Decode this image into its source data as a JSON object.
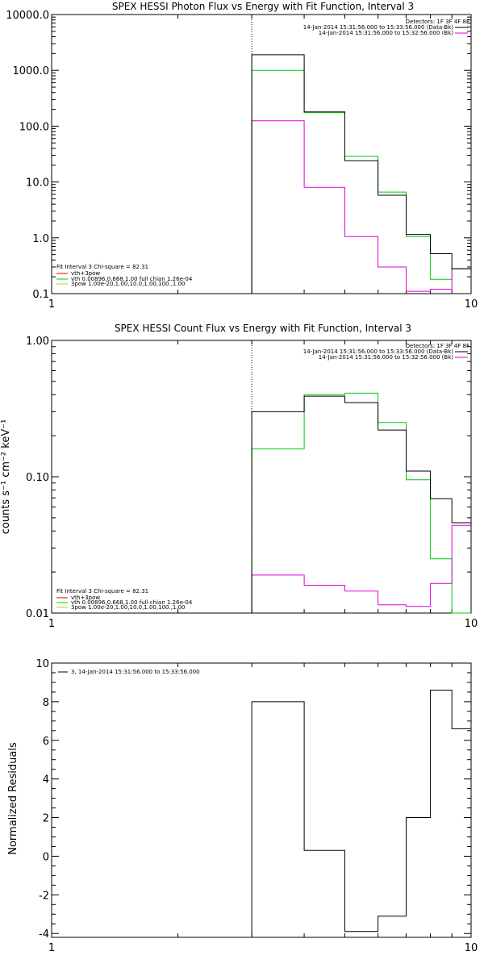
{
  "colors": {
    "data": "#000000",
    "bk": "#dd00dd",
    "fit": "#00cc00",
    "comp_vth": "#00cc00",
    "comp_3pow": "#cccc00",
    "comp_sum": "#dd0000"
  },
  "chart_data": [
    {
      "type": "line",
      "title": "SPEX HESSI Photon Flux vs Energy with Fit Function, Interval 3",
      "xlabel": "",
      "ylabel": "",
      "xscale": "log",
      "yscale": "log",
      "xlim": [
        1,
        10
      ],
      "ylim": [
        0.1,
        10000
      ],
      "xtick_labels": [
        "1",
        "10"
      ],
      "ytick_labels": [
        "0.1",
        "1.0",
        "10.0",
        "100.0",
        "1000.0",
        "10000.0"
      ],
      "vline_x": 3.0,
      "bin_edges": [
        3.0,
        4.0,
        5.0,
        6.0,
        7.0,
        8.0,
        9.0,
        10.0
      ],
      "series": [
        {
          "values": [
            1900,
            180,
            24,
            5.8,
            1.15,
            0.52,
            0.28
          ]
        },
        {
          "values": [
            125,
            8.0,
            1.05,
            0.3,
            0.11,
            0.12,
            0.28
          ]
        },
        {
          "values": [
            1000,
            175,
            29,
            6.6,
            1.05,
            0.18,
            0.28
          ]
        }
      ],
      "detectors": "Detectors: 1F 3F 4F 8F",
      "legend": [
        "14-Jan-2014 15:31:56.000 to 15:33:56.000 (Data-Bk)",
        "14-Jan-2014 15:31:56.000 to 15:32:56.000 (Bk)"
      ],
      "fit_info": [
        "Fit Interval 3   Chi-square = 82.31",
        "vth+3pow",
        "vth 0.00896,0.668,1.00   full chian 1.26e-04",
        "3pow 1.00e-20,1.00,10.0,1.00,100.,1.00"
      ]
    },
    {
      "type": "line",
      "title": "SPEX HESSI Count Flux vs Energy with Fit Function, Interval 3",
      "xlabel": "",
      "ylabel": "counts s⁻¹ cm⁻² keV⁻¹",
      "xscale": "log",
      "yscale": "log",
      "xlim": [
        1,
        10
      ],
      "ylim": [
        0.01,
        1.0
      ],
      "xtick_labels": [
        "1",
        "10"
      ],
      "ytick_labels": [
        "0.01",
        "0.10",
        "1.00"
      ],
      "vline_x": 3.0,
      "bin_edges": [
        3.0,
        4.0,
        5.0,
        6.0,
        7.0,
        8.0,
        9.0,
        10.0
      ],
      "series": [
        {
          "values": [
            0.3,
            0.39,
            0.35,
            0.22,
            0.11,
            0.069,
            0.046
          ]
        },
        {
          "values": [
            0.019,
            0.016,
            0.0145,
            0.0115,
            0.0112,
            0.0165,
            0.044
          ]
        },
        {
          "values": [
            0.16,
            0.4,
            0.41,
            0.25,
            0.095,
            0.025,
            0.0
          ]
        }
      ],
      "detectors": "Detectors: 1F 3F 4F 8F",
      "legend": [
        "14-Jan-2014 15:31:56.000 to 15:33:56.000 (Data-Bk)",
        "14-Jan-2014 15:31:56.000 to 15:32:56.000 (Bk)"
      ],
      "fit_info": [
        "Fit Interval 3   Chi-square = 82.31",
        "vth+3pow",
        "vth 0.00896,0.668,1.00   full chian 1.26e-04",
        "3pow 1.00e-20,1.00,10.0,1.00,100.,1.00"
      ]
    },
    {
      "type": "line",
      "title": "",
      "xlabel": "",
      "ylabel": "Normalized Residuals",
      "xscale": "log",
      "yscale": "linear",
      "xlim": [
        1,
        10
      ],
      "ylim": [
        -4.2,
        10
      ],
      "xtick_labels": [
        "1",
        "10"
      ],
      "ytick_labels": [
        "-4",
        "-2",
        "0",
        "2",
        "4",
        "6",
        "8",
        "10"
      ],
      "bin_edges": [
        3.0,
        4.0,
        5.0,
        6.0,
        7.0,
        8.0,
        9.0,
        10.0
      ],
      "series": [
        {
          "values": [
            8.0,
            0.3,
            -3.9,
            -3.1,
            2.0,
            8.6,
            6.6
          ]
        }
      ],
      "legend": [
        "3, 14-Jan-2014 15:31:56.000 to 15:33:56.000"
      ]
    }
  ]
}
